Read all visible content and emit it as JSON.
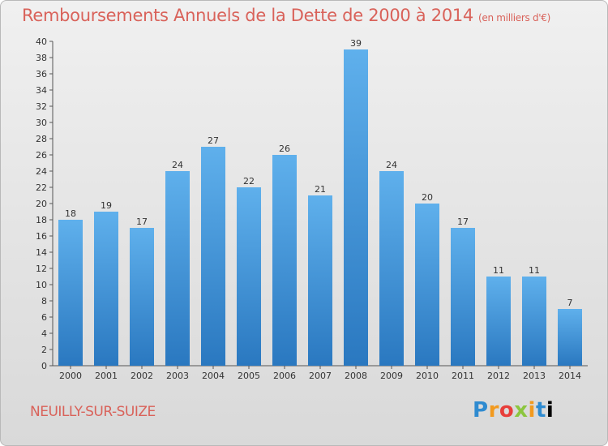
{
  "title": "Remboursements Annuels de la Dette de 2000 à 2014",
  "title_unit": "(en milliers d'€)",
  "commune": "NEUILLY-SUR-SUIZE",
  "logo_letters": [
    "P",
    "r",
    "o",
    "x",
    "i",
    "t",
    "i"
  ],
  "colors": {
    "title": "#d9625a",
    "bar_top": "#5fb0ec",
    "bar_bottom": "#2a78c0"
  },
  "chart_data": {
    "type": "bar",
    "categories": [
      "2000",
      "2001",
      "2002",
      "2003",
      "2004",
      "2005",
      "2006",
      "2007",
      "2008",
      "2009",
      "2010",
      "2011",
      "2012",
      "2013",
      "2014"
    ],
    "values": [
      18,
      19,
      17,
      24,
      27,
      22,
      26,
      21,
      39,
      24,
      20,
      17,
      11,
      11,
      7
    ],
    "ylim": [
      0,
      40
    ],
    "yticks": [
      0,
      2,
      4,
      6,
      8,
      10,
      12,
      14,
      16,
      18,
      20,
      22,
      24,
      26,
      28,
      30,
      32,
      34,
      36,
      38,
      40
    ],
    "grid": false
  }
}
